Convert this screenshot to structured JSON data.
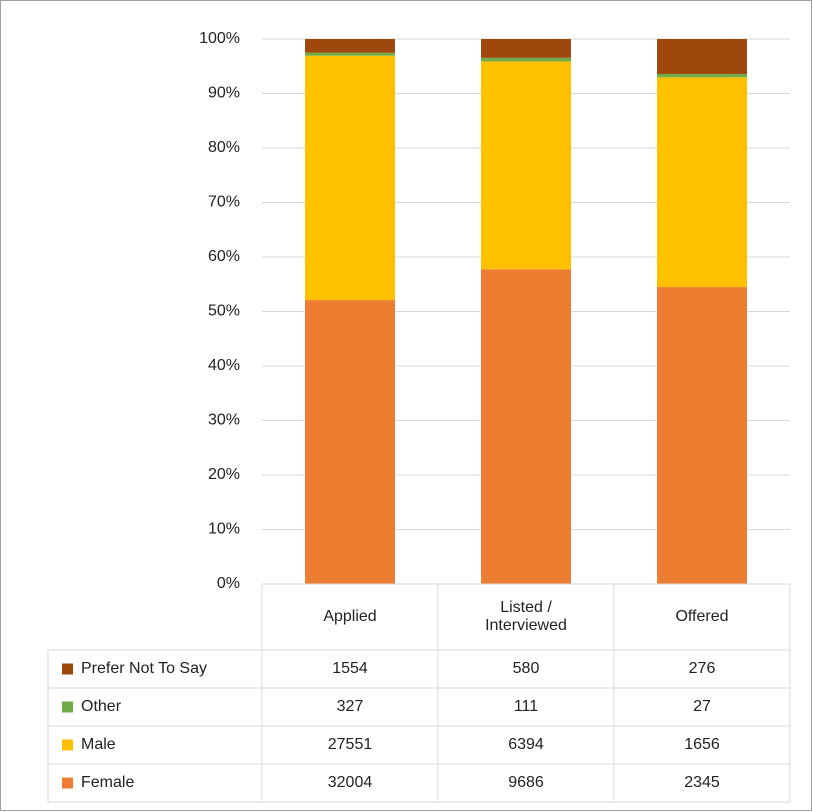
{
  "chart_data": {
    "type": "bar",
    "stacking": "percent",
    "categories": [
      "Applied",
      "Listed / Interviewed",
      "Offered"
    ],
    "series": [
      {
        "name": "Female",
        "color": "#ED7D31",
        "values": [
          32004,
          9686,
          2345
        ]
      },
      {
        "name": "Male",
        "color": "#FFC000",
        "values": [
          27551,
          6394,
          1656
        ]
      },
      {
        "name": "Other",
        "color": "#70AD47",
        "values": [
          327,
          111,
          27
        ]
      },
      {
        "name": "Prefer Not To Say",
        "color": "#9E480E",
        "values": [
          1554,
          580,
          276
        ]
      }
    ],
    "ylim": [
      0,
      100
    ],
    "yticks": [
      {
        "value": 0,
        "label": "0%"
      },
      {
        "value": 10,
        "label": "10%"
      },
      {
        "value": 20,
        "label": "20%"
      },
      {
        "value": 30,
        "label": "30%"
      },
      {
        "value": 40,
        "label": "40%"
      },
      {
        "value": 50,
        "label": "50%"
      },
      {
        "value": 60,
        "label": "60%"
      },
      {
        "value": 70,
        "label": "70%"
      },
      {
        "value": 80,
        "label": "80%"
      },
      {
        "value": 90,
        "label": "90%"
      },
      {
        "value": 100,
        "label": "100%"
      }
    ],
    "grid": true,
    "data_table": true
  }
}
